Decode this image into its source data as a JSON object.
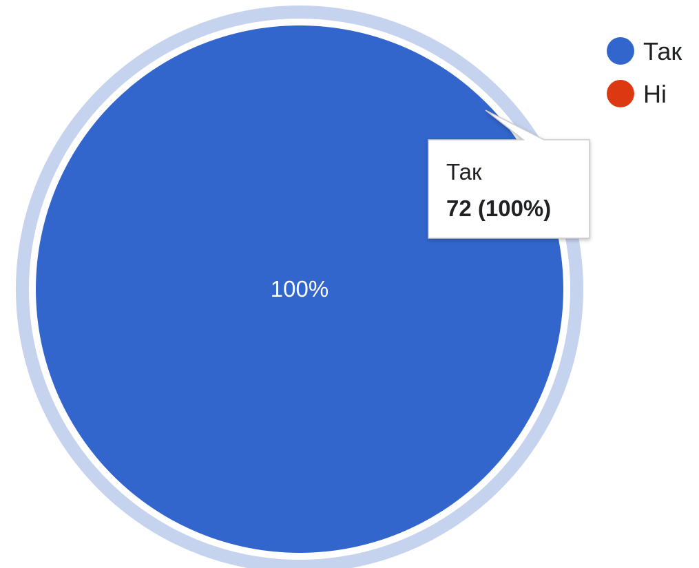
{
  "chart_data": {
    "type": "pie",
    "title": "",
    "categories": [
      "Так",
      "Ні"
    ],
    "values": [
      72,
      0
    ],
    "percent_labels": [
      "100%",
      "0%"
    ],
    "colors": [
      "#3366cc",
      "#dc3912"
    ],
    "highlight_color": "#c5d3ef",
    "legend_position": "top-right",
    "tooltip": {
      "category": "Так",
      "value_text": "72 (100%)"
    }
  }
}
